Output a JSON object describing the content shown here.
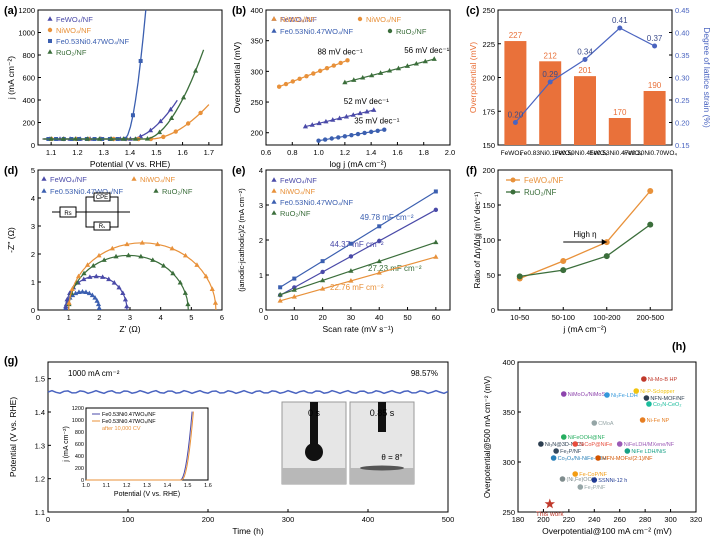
{
  "colors": {
    "fe": "#4a4aa8",
    "ni": "#e8913a",
    "feni": "#3b5fb0",
    "ru": "#3b6e3b",
    "bar": "#e9713a",
    "line": "#4a64c0",
    "star": "#c0392b",
    "axis": "#000000"
  },
  "chart_data": [
    {
      "id": "a",
      "panel_label": "(a)",
      "type": "line",
      "xlabel": "Potential (V vs. RHE)",
      "ylabel": "j (mA cm⁻²)",
      "xlim": [
        1.05,
        1.75
      ],
      "ylim": [
        0,
        1200
      ],
      "xticks": [
        "1.1",
        "1.2",
        "1.3",
        "1.4",
        "1.5",
        "1.6",
        "1.7"
      ],
      "yticks": [
        "0",
        "200",
        "400",
        "600",
        "800",
        "1000",
        "1200"
      ],
      "legend": [
        "FeWO₄/NF",
        "NiWO₄/NF",
        "Fe0.53Ni0.47WO₄/NF",
        "RuO₂/NF"
      ],
      "series": [
        {
          "name": "FeWO₄/NF",
          "color": "fe",
          "onset": 1.4,
          "end": 1.58,
          "max": 360
        },
        {
          "name": "NiWO₄/NF",
          "color": "ni",
          "onset": 1.48,
          "end": 1.7,
          "max": 320
        },
        {
          "name": "Fe0.53Ni0.47WO₄/NF",
          "color": "feni",
          "onset": 1.38,
          "end": 1.46,
          "max": 1200
        },
        {
          "name": "RuO₂/NF",
          "color": "ru",
          "onset": 1.46,
          "end": 1.68,
          "max": 830
        }
      ]
    },
    {
      "id": "b",
      "panel_label": "(b)",
      "type": "scatter",
      "xlabel": "log j (mA cm⁻²)",
      "ylabel": "Overpotential (mV)",
      "xlim": [
        0.6,
        2.0
      ],
      "ylim": [
        180,
        400
      ],
      "xticks": [
        "0.6",
        "0.8",
        "1.0",
        "1.2",
        "1.4",
        "1.6",
        "1.8",
        "2.0"
      ],
      "yticks": [
        "200",
        "250",
        "300",
        "350",
        "400"
      ],
      "legend": [
        "FeWO₄/NF",
        "NiWO₄/NF",
        "Fe0.53Ni0.47WO₄/NF",
        "RuO₂/NF"
      ],
      "series": [
        {
          "name": "NiWO₄/NF",
          "color": "ni",
          "x0": 0.7,
          "x1": 1.22,
          "y0": 275,
          "y1": 318,
          "label": "88 mV dec⁻¹"
        },
        {
          "name": "RuO₂/NF",
          "color": "ru",
          "x0": 1.2,
          "x1": 1.88,
          "y0": 282,
          "y1": 320,
          "label": "56 mV dec⁻¹"
        },
        {
          "name": "FeWO₄/NF",
          "color": "fe",
          "x0": 0.9,
          "x1": 1.42,
          "y0": 210,
          "y1": 237,
          "label": "52 mV dec⁻¹"
        },
        {
          "name": "Fe0.53Ni0.47WO₄/NF",
          "color": "feni",
          "x0": 1.0,
          "x1": 1.5,
          "y0": 187,
          "y1": 205,
          "label": "35 mV dec⁻¹"
        }
      ]
    },
    {
      "id": "c",
      "panel_label": "(c)",
      "type": "bar",
      "ylabel": "Overpotential (mV)",
      "y2label": "Degree of lattice strain (%)",
      "ylim": [
        150,
        250
      ],
      "y2lim": [
        0.15,
        0.45
      ],
      "yticks": [
        "150",
        "175",
        "200",
        "225",
        "250"
      ],
      "y2ticks": [
        "0.15",
        "0.20",
        "0.25",
        "0.30",
        "0.35",
        "0.40",
        "0.45"
      ],
      "categories": [
        "FeWO₄",
        "Fe0.83Ni0.17WO₄",
        "Fe0.59Ni0.41WO₄",
        "Fe0.53Ni0.47WO₄",
        "Fe0.30Ni0.70WO₄"
      ],
      "values": [
        227,
        212,
        201,
        170,
        190
      ],
      "strain": [
        0.2,
        0.29,
        0.34,
        0.41,
        0.37
      ],
      "bar_labels": [
        "227",
        "212",
        "201",
        "170",
        "190"
      ],
      "strain_labels": [
        "0.20",
        "0.29",
        "0.34",
        "0.41",
        "0.37"
      ]
    },
    {
      "id": "d",
      "panel_label": "(d)",
      "type": "scatter",
      "xlabel": "Z' (Ω)",
      "ylabel": "-Z'' (Ω)",
      "xlim": [
        0,
        6
      ],
      "ylim": [
        0,
        5
      ],
      "xticks": [
        "0",
        "1",
        "2",
        "3",
        "4",
        "5",
        "6"
      ],
      "yticks": [
        "0",
        "1",
        "2",
        "3",
        "4",
        "5"
      ],
      "legend": [
        "FeWO₄/NF",
        "NiWO₄/NF",
        "Fe0.53Ni0.47WO₄/NF",
        "RuO₂/NF"
      ],
      "circuit": [
        "Rs",
        "CPE",
        "Rₛ"
      ],
      "series": [
        {
          "name": "Fe0.53Ni0.47WO₄/NF",
          "color": "feni",
          "x0": 0.9,
          "x1": 2.0,
          "h": 0.65
        },
        {
          "name": "FeWO₄/NF",
          "color": "fe",
          "x0": 0.9,
          "x1": 2.9,
          "h": 1.2
        },
        {
          "name": "RuO₂/NF",
          "color": "ru",
          "x0": 1.0,
          "x1": 4.9,
          "h": 1.95
        },
        {
          "name": "NiWO₄/NF",
          "color": "ni",
          "x0": 1.0,
          "x1": 5.8,
          "h": 2.4
        }
      ]
    },
    {
      "id": "e",
      "panel_label": "(e)",
      "type": "line",
      "xlabel": "Scan rate  (mV s⁻¹)",
      "ylabel": "(janodic-jcathodic)/2 (mA cm⁻²)",
      "xlim": [
        0,
        65
      ],
      "ylim": [
        0,
        4
      ],
      "xticks": [
        "0",
        "10",
        "20",
        "30",
        "40",
        "50",
        "60"
      ],
      "yticks": [
        "0",
        "1",
        "2",
        "3",
        "4"
      ],
      "legend": [
        "FeWO₄/NF",
        "NiWO₄/NF",
        "Fe0.53Ni0.47WO₄/NF",
        "RuO₂/NF"
      ],
      "x": [
        5,
        10,
        20,
        30,
        40,
        60
      ],
      "series": [
        {
          "name": "Fe0.53Ni0.47WO₄/NF",
          "color": "feni",
          "slope": 0.04978,
          "b": 0.4,
          "label": "49.78 mF cm⁻²"
        },
        {
          "name": "FeWO₄/NF",
          "color": "fe",
          "slope": 0.04437,
          "b": 0.2,
          "label": "44.37 mF cm⁻²"
        },
        {
          "name": "RuO₂/NF",
          "color": "ru",
          "slope": 0.02723,
          "b": 0.3,
          "label": "27.23 mF cm⁻²"
        },
        {
          "name": "NiWO₄/NF",
          "color": "ni",
          "slope": 0.02276,
          "b": 0.15,
          "label": "22.76 mF cm⁻²"
        }
      ]
    },
    {
      "id": "f",
      "panel_label": "(f)",
      "type": "line",
      "xlabel": "j (mA cm⁻²)",
      "ylabel": "Ratio of Δη/Δlgj (mV dec⁻¹)",
      "ylim": [
        0,
        200
      ],
      "yticks": [
        "0",
        "50",
        "100",
        "150",
        "200"
      ],
      "categories": [
        "10-50",
        "50-100",
        "100-200",
        "200-500"
      ],
      "legend": [
        "FeWO₄/NF",
        "RuO₂/NF"
      ],
      "annotation": "High η",
      "series": [
        {
          "name": "FeWO₄/NF",
          "color": "ni",
          "values": [
            45,
            70,
            97,
            170
          ]
        },
        {
          "name": "RuO₂/NF",
          "color": "ru",
          "values": [
            48,
            57,
            77,
            122
          ]
        }
      ]
    },
    {
      "id": "g",
      "panel_label": "(g)",
      "type": "line",
      "xlabel": "Time (h)",
      "ylabel": "Potential (V vs. RHE)",
      "xlim": [
        0,
        500
      ],
      "ylim": [
        1.1,
        1.55
      ],
      "xticks": [
        "0",
        "100",
        "200",
        "300",
        "400",
        "500"
      ],
      "yticks": [
        "1.1",
        "1.2",
        "1.3",
        "1.4",
        "1.5"
      ],
      "condition": "1000 mA cm⁻²",
      "retention": "98.57%",
      "level": 1.46,
      "inset": {
        "xlabel": "Potential (V vs. RHE)",
        "ylabel": "j (mA cm⁻²)",
        "xticks": [
          "1.0",
          "1.1",
          "1.2",
          "1.3",
          "1.4",
          "1.5",
          "1.6"
        ],
        "yticks": [
          "0",
          "200",
          "400",
          "600",
          "800",
          "1000",
          "1200"
        ],
        "legend": [
          "Fe0.53Ni0.47WO₄/NF",
          "Fe0.53Ni0.47WO₄/NF",
          "after 10,000 CV"
        ]
      },
      "photo_labels": [
        "0 s",
        "0.85 s",
        "θ = 8°"
      ]
    },
    {
      "id": "h",
      "panel_label": "(h)",
      "type": "scatter",
      "xlabel": "Overpotential@100 mA cm⁻² (mV)",
      "ylabel": "Overpotential@500 mA cm⁻² (mV)",
      "xlim": [
        180,
        320
      ],
      "ylim": [
        250,
        400
      ],
      "xticks": [
        "180",
        "200",
        "220",
        "240",
        "260",
        "280",
        "300",
        "320"
      ],
      "yticks": [
        "250",
        "300",
        "350",
        "400"
      ],
      "points": [
        {
          "label": "This work",
          "x": 205,
          "y": 258,
          "c": "#c0392b",
          "star": true
        },
        {
          "label": "Ni-Mo-B HP",
          "x": 279,
          "y": 383,
          "c": "#c0392b"
        },
        {
          "label": "NiMoO₄/NiMoS",
          "x": 216,
          "y": 368,
          "c": "#8e44ad"
        },
        {
          "label": "Ni₃Fe-LDH",
          "x": 250,
          "y": 367,
          "c": "#3498db"
        },
        {
          "label": "Ni-P-Sclopper",
          "x": 273,
          "y": 371,
          "c": "#f1c40f"
        },
        {
          "label": "NFN-MOF/NF",
          "x": 281,
          "y": 364,
          "c": "#2c3e50"
        },
        {
          "label": "Co₃N-CeO₂",
          "x": 283,
          "y": 358,
          "c": "#1abc9c"
        },
        {
          "label": "CMoA",
          "x": 240,
          "y": 339,
          "c": "#95a5a6"
        },
        {
          "label": "Ni-Fe NP",
          "x": 278,
          "y": 342,
          "c": "#e67e22"
        },
        {
          "label": "NiFeOOH@NF",
          "x": 216,
          "y": 325,
          "c": "#27ae60"
        },
        {
          "label": "Ni₃N@3D-NiCS",
          "x": 198,
          "y": 318,
          "c": "#2c3e50"
        },
        {
          "label": "NiCoP@NiFe",
          "x": 225,
          "y": 318,
          "c": "#e74c3c"
        },
        {
          "label": "NiFeLDH/MXene/NF",
          "x": 260,
          "y": 318,
          "c": "#9b59b6"
        },
        {
          "label": "Fe₂P/NF",
          "x": 210,
          "y": 311,
          "c": "#34495e"
        },
        {
          "label": "NiFe LDH/NiS",
          "x": 266,
          "y": 311,
          "c": "#16a085"
        },
        {
          "label": "Co₃O₄/Ni-NiFe-LDH",
          "x": 208,
          "y": 304,
          "c": "#2980b9"
        },
        {
          "label": "MFN-MOFs/(2:1)/NF",
          "x": 243,
          "y": 304,
          "c": "#d35400"
        },
        {
          "label": "Fe-CoP/NF",
          "x": 225,
          "y": 288,
          "c": "#f39c12"
        },
        {
          "label": "(Ni,Fe)OOH",
          "x": 215,
          "y": 283,
          "c": "#7f8c8d"
        },
        {
          "label": "SSNNi-12 h",
          "x": 240,
          "y": 282,
          "c": "#1f3a93"
        },
        {
          "label": "Fe₂P/NF",
          "x": 229,
          "y": 275,
          "c": "#95a5a6"
        }
      ]
    }
  ]
}
